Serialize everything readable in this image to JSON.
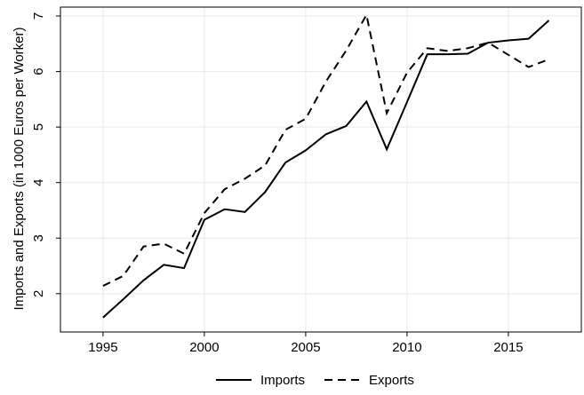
{
  "chart_data": {
    "type": "line",
    "y_label": "Imports and Exports (in 1000 Euros per Worker)",
    "x": [
      1995,
      1996,
      1997,
      1998,
      1999,
      2000,
      2001,
      2002,
      2003,
      2004,
      2005,
      2006,
      2007,
      2008,
      2009,
      2010,
      2011,
      2012,
      2013,
      2014,
      2015,
      2016,
      2017
    ],
    "series": [
      {
        "name": "Imports",
        "color": "#000000",
        "dash": "solid",
        "values": [
          1.57,
          1.9,
          2.24,
          2.52,
          2.46,
          3.33,
          3.52,
          3.47,
          3.83,
          4.36,
          4.58,
          4.87,
          5.02,
          5.46,
          4.6,
          5.45,
          6.31,
          6.31,
          6.32,
          6.52,
          6.56,
          6.59,
          6.92
        ]
      },
      {
        "name": "Exports",
        "color": "#000000",
        "dash": "dashed",
        "values": [
          2.14,
          2.32,
          2.85,
          2.9,
          2.72,
          3.45,
          3.88,
          4.07,
          4.31,
          4.95,
          5.15,
          5.82,
          6.38,
          7.02,
          5.25,
          5.98,
          6.42,
          6.37,
          6.42,
          6.52,
          6.3,
          6.08,
          6.22
        ]
      }
    ],
    "xlim": [
      1992.9,
      2018.6
    ],
    "xticks": [
      1995,
      2000,
      2005,
      2010,
      2015
    ],
    "ylim": [
      1.31,
      7.16
    ],
    "yticks": [
      2,
      3,
      4,
      5,
      6,
      7
    ],
    "grid": true,
    "legend": "bottom"
  }
}
